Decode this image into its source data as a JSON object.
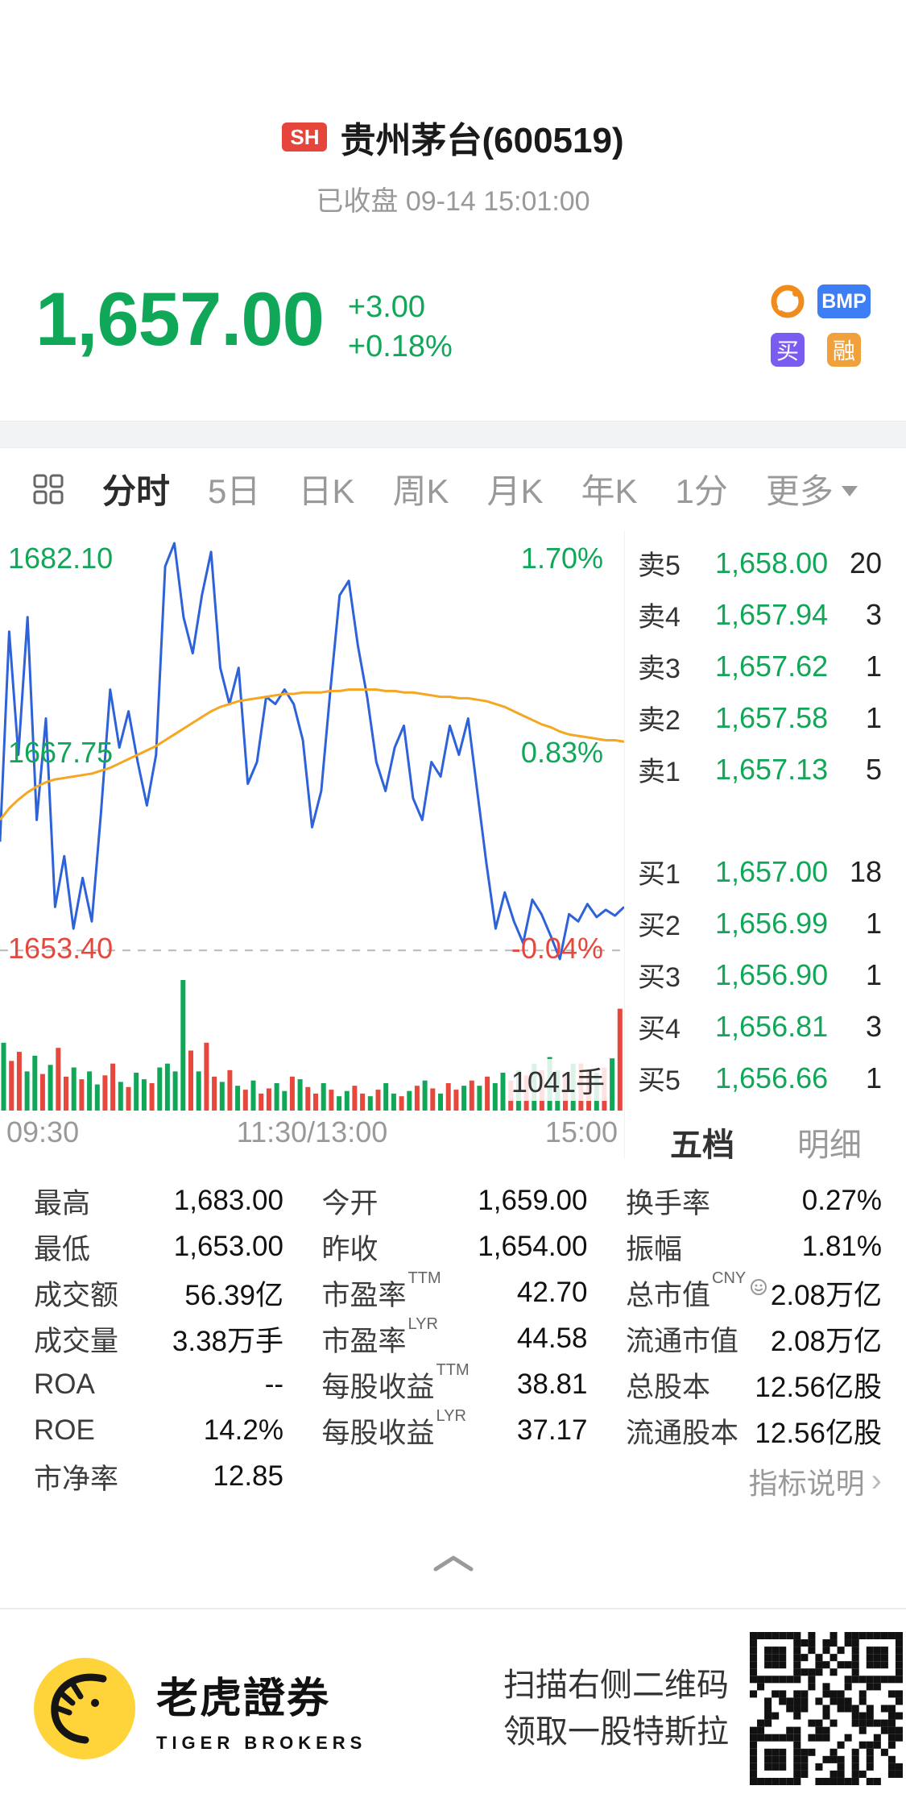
{
  "header": {
    "exchange_badge": "SH",
    "title": "贵州茅台(600519)",
    "status_line": "已收盘 09-14 15:01:00"
  },
  "quote": {
    "price": "1,657.00",
    "change": "+3.00",
    "change_percent": "+0.18%",
    "badges": {
      "bmp": "BMP",
      "buy": "买",
      "margin": "融"
    }
  },
  "tabs": {
    "items": [
      "分时",
      "5日",
      "日K",
      "周K",
      "月K",
      "年K",
      "1分"
    ],
    "more_label": "更多",
    "selected": "分时"
  },
  "chart_data": {
    "type": "line",
    "title": "分时",
    "x_ticks": [
      "09:30",
      "11:30/13:00",
      "15:00"
    ],
    "y_max": 1682.1,
    "y_min": 1653.4,
    "prev_close": 1654.0,
    "y_axis_labels": {
      "high": "1682.10",
      "mid": "1667.75",
      "low": "1653.40"
    },
    "pct_axis_labels": {
      "high": "1.70%",
      "mid": "0.83%",
      "low": "-0.04%"
    },
    "last_volume_label": "1041手",
    "series": [
      {
        "name": "price",
        "color": "#2e62d9",
        "values": [
          1661.5,
          1676.0,
          1667.5,
          1677.0,
          1663.0,
          1670.0,
          1657.0,
          1660.5,
          1655.5,
          1659.0,
          1656.0,
          1663.5,
          1672.0,
          1668.0,
          1670.5,
          1667.0,
          1664.0,
          1667.5,
          1680.5,
          1682.1,
          1677.0,
          1674.5,
          1678.5,
          1681.5,
          1673.5,
          1671.0,
          1673.5,
          1665.5,
          1667.0,
          1671.5,
          1671.0,
          1672.0,
          1671.0,
          1668.5,
          1662.5,
          1665.0,
          1672.0,
          1678.5,
          1679.5,
          1675.0,
          1671.5,
          1667.0,
          1665.0,
          1668.0,
          1669.5,
          1664.5,
          1663.0,
          1667.0,
          1666.0,
          1669.5,
          1667.5,
          1670.0,
          1665.0,
          1660.0,
          1655.5,
          1658.0,
          1656.0,
          1654.5,
          1657.5,
          1656.5,
          1655.0,
          1653.4,
          1656.5,
          1656.0,
          1657.2,
          1656.3,
          1656.8,
          1656.4,
          1657.0
        ]
      },
      {
        "name": "avg",
        "color": "#f5a623",
        "values": [
          1663.0,
          1663.8,
          1664.4,
          1664.9,
          1665.3,
          1665.6,
          1665.8,
          1665.9,
          1666.0,
          1666.1,
          1666.2,
          1666.4,
          1666.6,
          1666.9,
          1667.2,
          1667.5,
          1667.8,
          1668.1,
          1668.5,
          1668.9,
          1669.3,
          1669.7,
          1670.1,
          1670.5,
          1670.8,
          1671.0,
          1671.2,
          1671.3,
          1671.4,
          1671.5,
          1671.6,
          1671.7,
          1671.7,
          1671.8,
          1671.8,
          1671.8,
          1671.9,
          1671.9,
          1672.0,
          1672.0,
          1672.0,
          1672.0,
          1671.9,
          1671.9,
          1671.8,
          1671.8,
          1671.7,
          1671.6,
          1671.5,
          1671.5,
          1671.4,
          1671.4,
          1671.3,
          1671.2,
          1671.0,
          1670.8,
          1670.5,
          1670.2,
          1669.9,
          1669.6,
          1669.4,
          1669.1,
          1668.9,
          1668.8,
          1668.7,
          1668.6,
          1668.5,
          1668.5,
          1668.4
        ]
      }
    ],
    "volume": {
      "values": [
        52,
        38,
        45,
        30,
        42,
        28,
        35,
        48,
        26,
        33,
        24,
        30,
        20,
        27,
        36,
        22,
        18,
        29,
        24,
        21,
        33,
        36,
        30,
        100,
        46,
        30,
        52,
        26,
        22,
        31,
        19,
        16,
        23,
        13,
        17,
        21,
        15,
        26,
        24,
        18,
        13,
        21,
        16,
        11,
        15,
        19,
        13,
        11,
        16,
        21,
        13,
        11,
        15,
        19,
        23,
        17,
        13,
        21,
        16,
        19,
        23,
        19,
        26,
        21,
        29,
        23,
        31,
        27,
        36,
        31,
        41,
        31,
        29,
        36,
        36,
        31,
        29,
        33,
        40,
        78
      ],
      "colors": "grrggrgrrgrggrrgrggrggggrgrrgrgrgrrggrgrrgrggrrgrggrgrgrgrrgrgrggrgrgrggrgrrgrgr"
    }
  },
  "order_book": {
    "asks": [
      {
        "label": "卖5",
        "price": "1,658.00",
        "qty": "20"
      },
      {
        "label": "卖4",
        "price": "1,657.94",
        "qty": "3"
      },
      {
        "label": "卖3",
        "price": "1,657.62",
        "qty": "1"
      },
      {
        "label": "卖2",
        "price": "1,657.58",
        "qty": "1"
      },
      {
        "label": "卖1",
        "price": "1,657.13",
        "qty": "5"
      }
    ],
    "bids": [
      {
        "label": "买1",
        "price": "1,657.00",
        "qty": "18"
      },
      {
        "label": "买2",
        "price": "1,656.99",
        "qty": "1"
      },
      {
        "label": "买3",
        "price": "1,656.90",
        "qty": "1"
      },
      {
        "label": "买4",
        "price": "1,656.81",
        "qty": "3"
      },
      {
        "label": "买5",
        "price": "1,656.66",
        "qty": "1"
      }
    ],
    "tab_five": "五档",
    "tab_detail": "明细"
  },
  "stats": {
    "col1": [
      {
        "label": "最高",
        "value": "1,683.00"
      },
      {
        "label": "最低",
        "value": "1,653.00"
      },
      {
        "label": "成交额",
        "value": "56.39亿"
      },
      {
        "label": "成交量",
        "value": "3.38万手"
      },
      {
        "label": "ROA",
        "value": "--"
      },
      {
        "label": "ROE",
        "value": "14.2%"
      },
      {
        "label": "市净率",
        "value": "12.85"
      }
    ],
    "col2": [
      {
        "label": "今开",
        "value": "1,659.00"
      },
      {
        "label": "昨收",
        "value": "1,654.00"
      },
      {
        "label": "市盈率",
        "sup": "TTM",
        "value": "42.70"
      },
      {
        "label": "市盈率",
        "sup": "LYR",
        "value": "44.58"
      },
      {
        "label": "每股收益",
        "sup": "TTM",
        "value": "38.81"
      },
      {
        "label": "每股收益",
        "sup": "LYR",
        "value": "37.17"
      }
    ],
    "col3": [
      {
        "label": "换手率",
        "value": "0.27%"
      },
      {
        "label": "振幅",
        "value": "1.81%"
      },
      {
        "label": "总市值",
        "sup": "CNY",
        "value": "2.08万亿"
      },
      {
        "label": "流通市值",
        "value": "2.08万亿"
      },
      {
        "label": "总股本",
        "value": "12.56亿股"
      },
      {
        "label": "流通股本",
        "value": "12.56亿股"
      }
    ],
    "indicator_link": "指标说明",
    "indicator_chevron": "›"
  },
  "footer": {
    "brand": "老虎證券",
    "brand_sub": "TIGER BROKERS",
    "promo_line1": "扫描右侧二维码",
    "promo_line2": "领取一股特斯拉"
  },
  "colors": {
    "up": "#10a758",
    "down": "#e6483d",
    "price_line": "#2e62d9",
    "avg_line": "#f5a623",
    "exchange_red": "#e6453c",
    "badge_blue": "#3d7ef5",
    "badge_purple": "#7a5cf0",
    "badge_orange": "#f0a13c",
    "brand_yellow": "#ffd43b"
  }
}
